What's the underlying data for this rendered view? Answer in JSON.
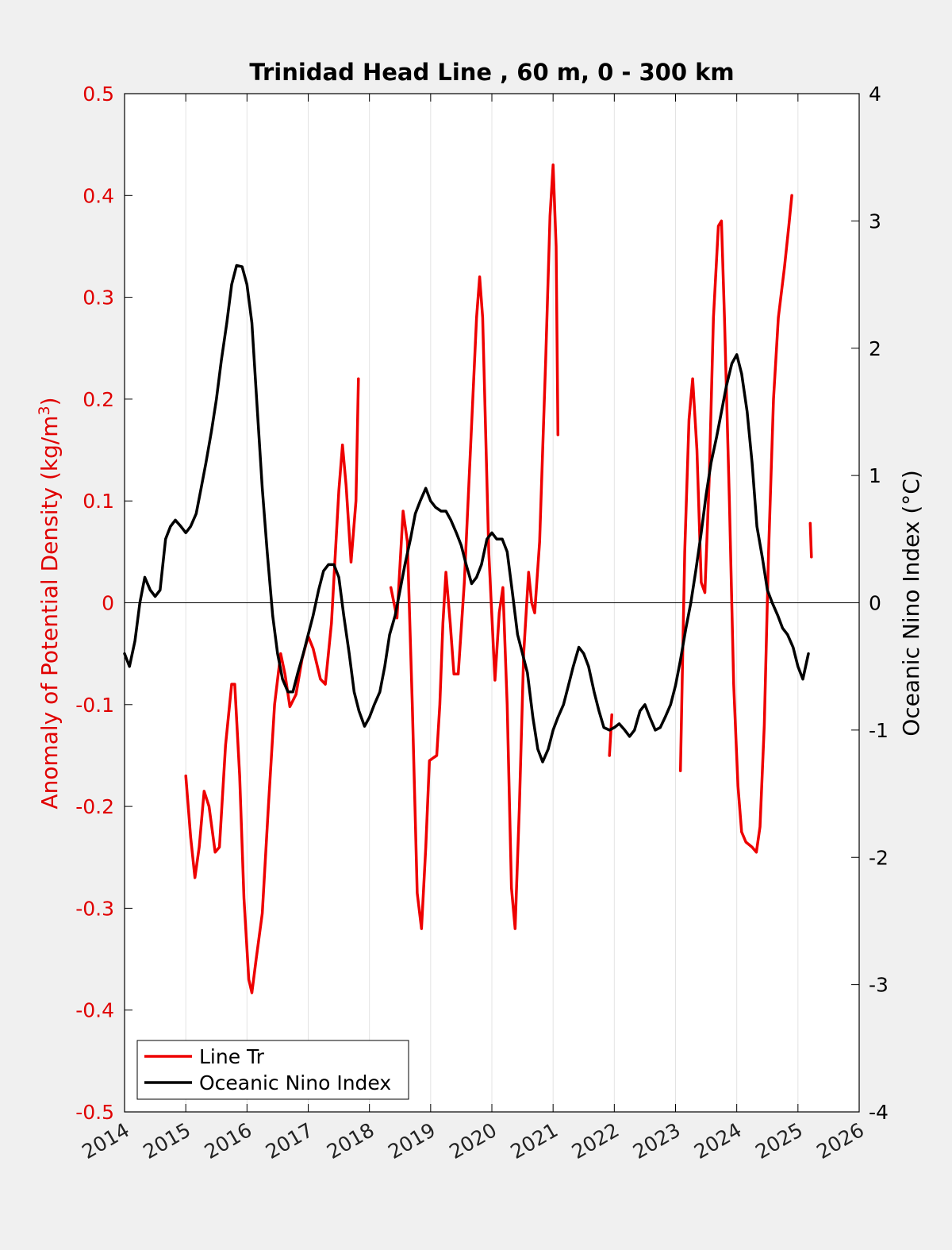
{
  "chart_data": {
    "type": "line",
    "title": "Trinidad Head Line , 60 m, 0 - 300 km",
    "ylabel_left": "Anomaly of Potential Density (kg/m",
    "ylabel_left_sup": "3",
    "ylabel_left_close": ")",
    "ylabel_right": "Oceanic Nino Index (°C)",
    "xlim": [
      2014,
      2026
    ],
    "ylim_left": [
      -0.5,
      0.5
    ],
    "ylim_right": [
      -4,
      4
    ],
    "x_ticks": [
      "2014",
      "2015",
      "2016",
      "2017",
      "2018",
      "2019",
      "2020",
      "2021",
      "2022",
      "2023",
      "2024",
      "2025",
      "2026"
    ],
    "y_left_ticks": [
      "-0.5",
      "-0.4",
      "-0.3",
      "-0.2",
      "-0.1",
      "0",
      "0.1",
      "0.2",
      "0.3",
      "0.4",
      "0.5"
    ],
    "y_right_ticks": [
      "-4",
      "-3",
      "-2",
      "-1",
      "0",
      "1",
      "2",
      "3",
      "4"
    ],
    "grid": "vertical",
    "legend": "bottom-left",
    "series": [
      {
        "name": "Line Tr",
        "axis": "left",
        "color": "#ee0000",
        "segments": [
          [
            [
              2015.0,
              -0.17
            ],
            [
              2015.08,
              -0.23
            ],
            [
              2015.15,
              -0.27
            ],
            [
              2015.22,
              -0.24
            ],
            [
              2015.3,
              -0.185
            ],
            [
              2015.38,
              -0.2
            ],
            [
              2015.48,
              -0.245
            ],
            [
              2015.55,
              -0.24
            ],
            [
              2015.65,
              -0.14
            ],
            [
              2015.75,
              -0.08
            ],
            [
              2015.8,
              -0.08
            ],
            [
              2015.88,
              -0.17
            ],
            [
              2015.95,
              -0.29
            ],
            [
              2016.03,
              -0.37
            ],
            [
              2016.08,
              -0.383
            ],
            [
              2016.15,
              -0.35
            ],
            [
              2016.25,
              -0.305
            ],
            [
              2016.35,
              -0.2
            ],
            [
              2016.45,
              -0.1
            ],
            [
              2016.55,
              -0.05
            ],
            [
              2016.62,
              -0.07
            ],
            [
              2016.7,
              -0.102
            ],
            [
              2016.8,
              -0.09
            ],
            [
              2016.9,
              -0.055
            ],
            [
              2017.0,
              -0.033
            ],
            [
              2017.08,
              -0.045
            ],
            [
              2017.2,
              -0.075
            ],
            [
              2017.28,
              -0.08
            ],
            [
              2017.38,
              -0.02
            ],
            [
              2017.5,
              0.11
            ],
            [
              2017.56,
              0.155
            ],
            [
              2017.62,
              0.115
            ],
            [
              2017.7,
              0.04
            ],
            [
              2017.78,
              0.1
            ],
            [
              2017.82,
              0.22
            ]
          ],
          [
            [
              2018.35,
              0.015
            ],
            [
              2018.45,
              -0.015
            ],
            [
              2018.55,
              0.09
            ],
            [
              2018.62,
              0.06
            ],
            [
              2018.7,
              -0.1
            ],
            [
              2018.78,
              -0.285
            ],
            [
              2018.85,
              -0.32
            ],
            [
              2018.92,
              -0.24
            ],
            [
              2018.98,
              -0.155
            ],
            [
              2019.05,
              -0.152
            ],
            [
              2019.1,
              -0.15
            ],
            [
              2019.15,
              -0.1
            ],
            [
              2019.2,
              -0.02
            ],
            [
              2019.25,
              0.03
            ],
            [
              2019.32,
              -0.02
            ],
            [
              2019.38,
              -0.07
            ],
            [
              2019.45,
              -0.07
            ],
            [
              2019.55,
              0.02
            ],
            [
              2019.65,
              0.15
            ],
            [
              2019.75,
              0.28
            ],
            [
              2019.8,
              0.32
            ],
            [
              2019.85,
              0.28
            ],
            [
              2019.95,
              0.05
            ],
            [
              2020.05,
              -0.076
            ],
            [
              2020.12,
              -0.01
            ],
            [
              2020.18,
              0.015
            ],
            [
              2020.25,
              -0.1
            ],
            [
              2020.32,
              -0.28
            ],
            [
              2020.38,
              -0.32
            ],
            [
              2020.45,
              -0.2
            ],
            [
              2020.52,
              -0.05
            ],
            [
              2020.6,
              0.03
            ],
            [
              2020.65,
              0.0
            ],
            [
              2020.7,
              -0.01
            ],
            [
              2020.78,
              0.06
            ],
            [
              2020.88,
              0.24
            ],
            [
              2020.95,
              0.38
            ],
            [
              2021.0,
              0.43
            ],
            [
              2021.05,
              0.35
            ],
            [
              2021.08,
              0.165
            ]
          ],
          [
            [
              2021.92,
              -0.15
            ],
            [
              2021.96,
              -0.11
            ]
          ],
          [
            [
              2023.08,
              -0.165
            ],
            [
              2023.15,
              0.05
            ],
            [
              2023.22,
              0.18
            ],
            [
              2023.28,
              0.22
            ],
            [
              2023.35,
              0.15
            ],
            [
              2023.42,
              0.02
            ],
            [
              2023.48,
              0.01
            ],
            [
              2023.55,
              0.12
            ],
            [
              2023.62,
              0.28
            ],
            [
              2023.7,
              0.37
            ],
            [
              2023.75,
              0.375
            ],
            [
              2023.8,
              0.28
            ],
            [
              2023.88,
              0.1
            ],
            [
              2023.95,
              -0.08
            ],
            [
              2024.02,
              -0.18
            ],
            [
              2024.08,
              -0.225
            ],
            [
              2024.15,
              -0.235
            ],
            [
              2024.25,
              -0.24
            ],
            [
              2024.32,
              -0.245
            ],
            [
              2024.38,
              -0.22
            ],
            [
              2024.45,
              -0.12
            ],
            [
              2024.52,
              0.05
            ],
            [
              2024.6,
              0.2
            ],
            [
              2024.68,
              0.28
            ],
            [
              2024.78,
              0.33
            ],
            [
              2024.85,
              0.37
            ],
            [
              2024.9,
              0.4
            ]
          ],
          [
            [
              2025.2,
              0.078
            ],
            [
              2025.22,
              0.045
            ]
          ]
        ]
      },
      {
        "name": "Oceanic Nino Index",
        "axis": "right",
        "color": "#000000",
        "segments": [
          [
            [
              2014.0,
              -0.4
            ],
            [
              2014.08,
              -0.5
            ],
            [
              2014.17,
              -0.3
            ],
            [
              2014.25,
              0.0
            ],
            [
              2014.33,
              0.2
            ],
            [
              2014.42,
              0.1
            ],
            [
              2014.5,
              0.05
            ],
            [
              2014.58,
              0.1
            ],
            [
              2014.67,
              0.5
            ],
            [
              2014.75,
              0.6
            ],
            [
              2014.83,
              0.65
            ],
            [
              2014.92,
              0.6
            ],
            [
              2015.0,
              0.55
            ],
            [
              2015.08,
              0.6
            ],
            [
              2015.17,
              0.7
            ],
            [
              2015.25,
              0.9
            ],
            [
              2015.33,
              1.1
            ],
            [
              2015.42,
              1.35
            ],
            [
              2015.5,
              1.6
            ],
            [
              2015.58,
              1.9
            ],
            [
              2015.67,
              2.2
            ],
            [
              2015.75,
              2.5
            ],
            [
              2015.83,
              2.65
            ],
            [
              2015.92,
              2.64
            ],
            [
              2016.0,
              2.5
            ],
            [
              2016.08,
              2.2
            ],
            [
              2016.17,
              1.5
            ],
            [
              2016.25,
              0.9
            ],
            [
              2016.33,
              0.4
            ],
            [
              2016.42,
              -0.1
            ],
            [
              2016.5,
              -0.4
            ],
            [
              2016.58,
              -0.6
            ],
            [
              2016.67,
              -0.7
            ],
            [
              2016.75,
              -0.7
            ],
            [
              2016.83,
              -0.55
            ],
            [
              2016.92,
              -0.4
            ],
            [
              2017.0,
              -0.25
            ],
            [
              2017.08,
              -0.1
            ],
            [
              2017.17,
              0.1
            ],
            [
              2017.25,
              0.25
            ],
            [
              2017.33,
              0.3
            ],
            [
              2017.42,
              0.3
            ],
            [
              2017.5,
              0.2
            ],
            [
              2017.58,
              -0.1
            ],
            [
              2017.67,
              -0.4
            ],
            [
              2017.75,
              -0.7
            ],
            [
              2017.83,
              -0.85
            ],
            [
              2017.92,
              -0.97
            ],
            [
              2018.0,
              -0.9
            ],
            [
              2018.08,
              -0.8
            ],
            [
              2018.17,
              -0.7
            ],
            [
              2018.25,
              -0.5
            ],
            [
              2018.33,
              -0.25
            ],
            [
              2018.42,
              -0.1
            ],
            [
              2018.5,
              0.1
            ],
            [
              2018.58,
              0.3
            ],
            [
              2018.67,
              0.5
            ],
            [
              2018.75,
              0.7
            ],
            [
              2018.83,
              0.8
            ],
            [
              2018.92,
              0.9
            ],
            [
              2019.0,
              0.8
            ],
            [
              2019.08,
              0.75
            ],
            [
              2019.17,
              0.72
            ],
            [
              2019.25,
              0.72
            ],
            [
              2019.33,
              0.65
            ],
            [
              2019.42,
              0.55
            ],
            [
              2019.5,
              0.45
            ],
            [
              2019.58,
              0.3
            ],
            [
              2019.67,
              0.15
            ],
            [
              2019.75,
              0.2
            ],
            [
              2019.83,
              0.3
            ],
            [
              2019.92,
              0.5
            ],
            [
              2020.0,
              0.55
            ],
            [
              2020.08,
              0.5
            ],
            [
              2020.17,
              0.5
            ],
            [
              2020.25,
              0.4
            ],
            [
              2020.33,
              0.1
            ],
            [
              2020.42,
              -0.25
            ],
            [
              2020.5,
              -0.4
            ],
            [
              2020.58,
              -0.55
            ],
            [
              2020.67,
              -0.9
            ],
            [
              2020.75,
              -1.15
            ],
            [
              2020.83,
              -1.25
            ],
            [
              2020.92,
              -1.15
            ],
            [
              2021.0,
              -1.0
            ],
            [
              2021.08,
              -0.9
            ],
            [
              2021.17,
              -0.8
            ],
            [
              2021.25,
              -0.65
            ],
            [
              2021.33,
              -0.5
            ],
            [
              2021.42,
              -0.35
            ],
            [
              2021.5,
              -0.4
            ],
            [
              2021.58,
              -0.5
            ],
            [
              2021.67,
              -0.7
            ],
            [
              2021.75,
              -0.85
            ],
            [
              2021.83,
              -0.98
            ],
            [
              2021.92,
              -1.0
            ],
            [
              2022.0,
              -0.98
            ],
            [
              2022.08,
              -0.95
            ],
            [
              2022.17,
              -1.0
            ],
            [
              2022.25,
              -1.05
            ],
            [
              2022.33,
              -1.0
            ],
            [
              2022.42,
              -0.85
            ],
            [
              2022.5,
              -0.8
            ],
            [
              2022.58,
              -0.9
            ],
            [
              2022.67,
              -1.0
            ],
            [
              2022.75,
              -0.98
            ],
            [
              2022.83,
              -0.9
            ],
            [
              2022.92,
              -0.8
            ],
            [
              2023.0,
              -0.65
            ],
            [
              2023.08,
              -0.45
            ],
            [
              2023.17,
              -0.2
            ],
            [
              2023.25,
              0.0
            ],
            [
              2023.33,
              0.25
            ],
            [
              2023.42,
              0.55
            ],
            [
              2023.5,
              0.85
            ],
            [
              2023.58,
              1.1
            ],
            [
              2023.67,
              1.3
            ],
            [
              2023.75,
              1.5
            ],
            [
              2023.83,
              1.7
            ],
            [
              2023.92,
              1.88
            ],
            [
              2024.0,
              1.95
            ],
            [
              2024.08,
              1.8
            ],
            [
              2024.17,
              1.5
            ],
            [
              2024.25,
              1.1
            ],
            [
              2024.33,
              0.6
            ],
            [
              2024.42,
              0.35
            ],
            [
              2024.5,
              0.1
            ],
            [
              2024.58,
              0.0
            ],
            [
              2024.67,
              -0.1
            ],
            [
              2024.75,
              -0.2
            ],
            [
              2024.83,
              -0.25
            ],
            [
              2024.92,
              -0.35
            ],
            [
              2025.0,
              -0.5
            ],
            [
              2025.08,
              -0.6
            ],
            [
              2025.17,
              -0.4
            ]
          ]
        ]
      }
    ]
  }
}
